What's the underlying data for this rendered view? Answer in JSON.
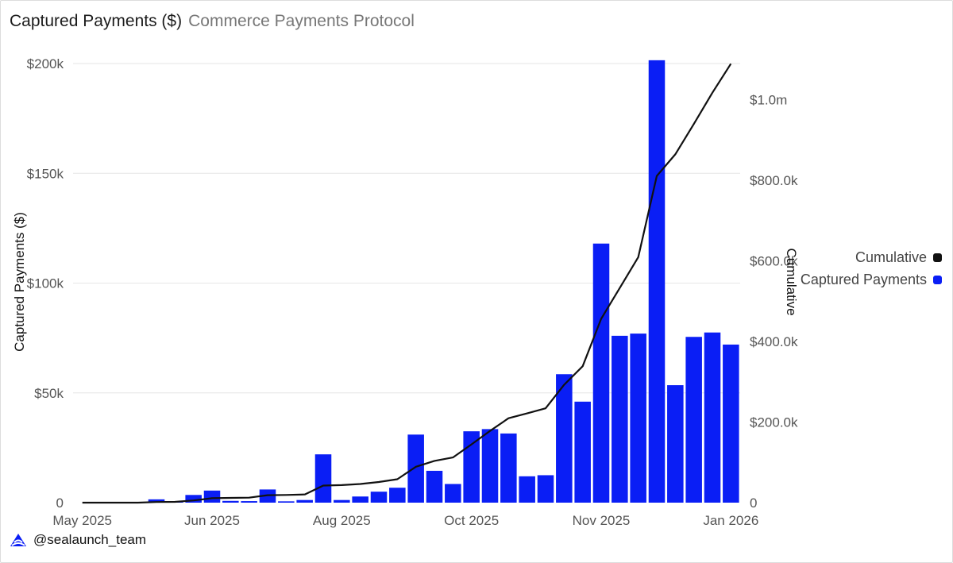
{
  "header": {
    "title": "Captured Payments ($)",
    "subtitle": "Commerce Payments Protocol"
  },
  "footer": {
    "handle": "@sealaunch_team",
    "logo_icon": "sealaunch-logo-icon"
  },
  "colors": {
    "bar": "#0a1ef5",
    "line": "#111111",
    "grid": "#e6e6e6"
  },
  "chart_data": {
    "type": "bar+line",
    "title": "Captured Payments ($)",
    "ylabel_left": "Captured Payments ($)",
    "ylabel_right": "Cumulative",
    "ylim_left": [
      0,
      200000
    ],
    "ylim_right": [
      0,
      1100000
    ],
    "yticks_left": [
      0,
      50000,
      100000,
      150000,
      200000
    ],
    "yticks_left_labels": [
      "0",
      "$50k",
      "$100k",
      "$150k",
      "$200k"
    ],
    "yticks_right": [
      0,
      200000,
      400000,
      600000,
      800000,
      1000000
    ],
    "yticks_right_labels": [
      "0",
      "$200.0k",
      "$400.0k",
      "$600.0k",
      "$800.0k",
      "$1.0m"
    ],
    "xticks": [
      {
        "index": 0,
        "label": "May 2025"
      },
      {
        "index": 7,
        "label": "Jun 2025"
      },
      {
        "index": 14,
        "label": "Aug 2025"
      },
      {
        "index": 21,
        "label": "Oct 2025"
      },
      {
        "index": 28,
        "label": "Nov 2025"
      },
      {
        "index": 35,
        "label": "Jan 2026"
      }
    ],
    "legend": [
      "Cumulative",
      "Captured Payments"
    ],
    "legend_position": "right",
    "series": [
      {
        "name": "Captured Payments",
        "type": "bar",
        "values": [
          0,
          0,
          0,
          0,
          1500,
          500,
          3500,
          5500,
          800,
          700,
          6000,
          600,
          1200,
          22000,
          1200,
          2800,
          5000,
          6800,
          31000,
          14500,
          8500,
          32500,
          33500,
          31500,
          12000,
          12500,
          58500,
          46000,
          118000,
          76000,
          77000,
          201500,
          53500,
          75500,
          77500,
          72000
        ]
      },
      {
        "name": "Cumulative",
        "type": "line",
        "values": [
          0,
          0,
          0,
          0,
          1500,
          2000,
          5500,
          11000,
          11800,
          12500,
          18500,
          19100,
          20300,
          42300,
          43500,
          46300,
          51300,
          58100,
          89100,
          103600,
          112100,
          144600,
          178100,
          209600,
          221600,
          234100,
          292600,
          338600,
          456600,
          532600,
          609600,
          811100,
          864600,
          940100,
          1017600,
          1089600
        ]
      }
    ]
  }
}
